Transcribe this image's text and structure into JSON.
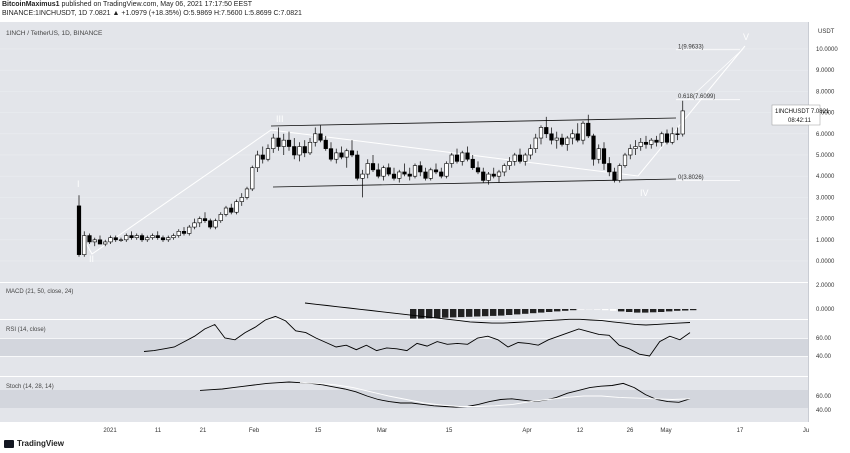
{
  "header": {
    "author": "BitcoinMaximus1",
    "publish_text": "published on TradingView.com, May 06, 2021 17:17:50 EEST",
    "symbol_line": "BINANCE:1INCHUSDT, 1D  7.0821  ▲ +1.0979 (+18.35%) O:5.9869 H:7.5600 L:5.8699 C:7.0821"
  },
  "footer": {
    "brand": "TradingView"
  },
  "price_pane": {
    "symbol_label": "1INCH / TetherUS, 1D, BINANCE",
    "usdt_label": "USDT",
    "last_price_tag": "1INCHUSDT  7.0821",
    "countdown": "08:42:11"
  },
  "macd_pane": {
    "label": "MACD (21, 50, close, 24)"
  },
  "rsi_pane": {
    "label": "RSI (14, close)"
  },
  "stoch_pane": {
    "label": "Stoch (14, 28, 14)"
  },
  "colors": {
    "bg": "#ffffff",
    "pane": "#e3e5ea",
    "candle": "#000000",
    "up_candle": "#ffffff",
    "grid": "#f2f3f5",
    "wave": "#ffffff",
    "text": "#333333"
  },
  "chart_data": {
    "type": "candlestick",
    "price_axis": {
      "ticks": [
        0,
        1,
        2,
        3,
        4,
        5,
        6,
        7,
        8,
        9,
        10
      ],
      "tick_labels": [
        "0.0000",
        "1.0000",
        "2.0000",
        "3.0000",
        "4.0000",
        "5.0000",
        "6.0000",
        "7.0000",
        "8.0000",
        "9.0000",
        "10.0000"
      ]
    },
    "x_axis": {
      "tick_labels": [
        "2021",
        "11",
        "21",
        "Feb",
        "15",
        "Mar",
        "15",
        "Apr",
        "12",
        "26",
        "May",
        "17",
        "Ju"
      ]
    },
    "candles": [
      [
        2.6,
        3.1,
        0.2,
        0.3
      ],
      [
        0.3,
        1.4,
        0.2,
        1.2
      ],
      [
        1.2,
        1.3,
        0.8,
        0.9
      ],
      [
        0.9,
        1.1,
        0.7,
        1.0
      ],
      [
        1.0,
        1.2,
        0.8,
        0.8
      ],
      [
        0.8,
        1.0,
        0.7,
        0.9
      ],
      [
        0.9,
        1.2,
        0.8,
        1.1
      ],
      [
        1.1,
        1.2,
        0.9,
        1.0
      ],
      [
        1.0,
        1.1,
        0.9,
        1.0
      ],
      [
        1.0,
        1.3,
        0.9,
        1.2
      ],
      [
        1.2,
        1.4,
        1.0,
        1.1
      ],
      [
        1.1,
        1.3,
        1.0,
        1.2
      ],
      [
        1.2,
        1.3,
        0.9,
        1.0
      ],
      [
        1.0,
        1.2,
        0.9,
        1.1
      ],
      [
        1.1,
        1.3,
        1.0,
        1.2
      ],
      [
        1.2,
        1.4,
        1.0,
        1.1
      ],
      [
        1.1,
        1.2,
        0.9,
        1.0
      ],
      [
        1.0,
        1.2,
        0.9,
        1.1
      ],
      [
        1.1,
        1.3,
        1.0,
        1.2
      ],
      [
        1.2,
        1.5,
        1.1,
        1.4
      ],
      [
        1.4,
        1.6,
        1.2,
        1.3
      ],
      [
        1.3,
        1.7,
        1.2,
        1.6
      ],
      [
        1.6,
        2.0,
        1.5,
        1.8
      ],
      [
        1.8,
        2.1,
        1.6,
        2.0
      ],
      [
        2.0,
        2.3,
        1.8,
        1.9
      ],
      [
        1.9,
        2.0,
        1.5,
        1.6
      ],
      [
        1.6,
        2.0,
        1.5,
        1.9
      ],
      [
        1.9,
        2.3,
        1.8,
        2.2
      ],
      [
        2.2,
        2.6,
        2.1,
        2.5
      ],
      [
        2.5,
        2.7,
        2.2,
        2.3
      ],
      [
        2.3,
        2.9,
        2.2,
        2.8
      ],
      [
        2.8,
        3.2,
        2.6,
        3.0
      ],
      [
        3.0,
        3.5,
        2.9,
        3.4
      ],
      [
        3.4,
        4.5,
        3.3,
        4.4
      ],
      [
        4.4,
        5.2,
        4.2,
        5.0
      ],
      [
        5.0,
        5.4,
        4.6,
        4.8
      ],
      [
        4.8,
        5.5,
        4.7,
        5.3
      ],
      [
        5.3,
        6.0,
        5.1,
        5.8
      ],
      [
        5.8,
        6.3,
        5.2,
        5.4
      ],
      [
        5.4,
        6.0,
        5.0,
        5.7
      ],
      [
        5.7,
        6.1,
        5.2,
        5.4
      ],
      [
        5.4,
        5.8,
        4.8,
        5.0
      ],
      [
        5.0,
        5.6,
        4.7,
        5.4
      ],
      [
        5.4,
        5.7,
        4.9,
        5.1
      ],
      [
        5.1,
        5.8,
        5.0,
        5.6
      ],
      [
        5.6,
        6.3,
        5.4,
        6.0
      ],
      [
        6.0,
        6.4,
        5.6,
        5.7
      ],
      [
        5.7,
        5.9,
        5.2,
        5.3
      ],
      [
        5.3,
        5.6,
        4.7,
        4.8
      ],
      [
        4.8,
        5.3,
        4.6,
        5.1
      ],
      [
        5.1,
        5.4,
        4.8,
        4.9
      ],
      [
        4.9,
        5.3,
        4.4,
        5.2
      ],
      [
        5.2,
        5.7,
        4.9,
        5.0
      ],
      [
        5.0,
        5.2,
        3.8,
        3.9
      ],
      [
        3.9,
        4.3,
        3.0,
        4.1
      ],
      [
        4.1,
        4.8,
        3.9,
        4.6
      ],
      [
        4.6,
        5.0,
        4.2,
        4.3
      ],
      [
        4.3,
        4.6,
        3.9,
        4.0
      ],
      [
        4.0,
        4.5,
        3.8,
        4.4
      ],
      [
        4.4,
        4.6,
        4.0,
        4.1
      ],
      [
        4.1,
        4.4,
        3.8,
        3.9
      ],
      [
        3.9,
        4.3,
        3.7,
        4.2
      ],
      [
        4.2,
        4.6,
        4.0,
        4.1
      ],
      [
        4.1,
        4.4,
        3.8,
        4.0
      ],
      [
        4.0,
        4.6,
        3.9,
        4.5
      ],
      [
        4.5,
        4.7,
        4.0,
        4.2
      ],
      [
        4.2,
        4.4,
        3.8,
        3.9
      ],
      [
        3.9,
        4.4,
        3.8,
        4.3
      ],
      [
        4.3,
        4.6,
        4.1,
        4.2
      ],
      [
        4.2,
        4.4,
        3.9,
        4.0
      ],
      [
        4.0,
        4.7,
        3.9,
        4.6
      ],
      [
        4.6,
        5.1,
        4.4,
        5.0
      ],
      [
        5.0,
        5.3,
        4.6,
        4.7
      ],
      [
        4.7,
        5.2,
        4.5,
        5.1
      ],
      [
        5.1,
        5.4,
        4.7,
        4.8
      ],
      [
        4.8,
        5.0,
        4.3,
        4.4
      ],
      [
        4.4,
        4.7,
        4.1,
        4.2
      ],
      [
        4.2,
        4.4,
        3.7,
        3.8
      ],
      [
        3.8,
        4.2,
        3.6,
        4.1
      ],
      [
        4.1,
        4.4,
        3.9,
        4.0
      ],
      [
        4.0,
        4.3,
        3.7,
        4.2
      ],
      [
        4.2,
        4.6,
        4.0,
        4.5
      ],
      [
        4.5,
        4.9,
        4.3,
        4.7
      ],
      [
        4.7,
        5.1,
        4.5,
        5.0
      ],
      [
        5.0,
        5.3,
        4.6,
        4.7
      ],
      [
        4.7,
        5.1,
        4.5,
        5.0
      ],
      [
        5.0,
        5.5,
        4.8,
        5.3
      ],
      [
        5.3,
        6.0,
        5.1,
        5.8
      ],
      [
        5.8,
        6.4,
        5.5,
        6.3
      ],
      [
        6.3,
        6.8,
        5.8,
        6.0
      ],
      [
        6.0,
        6.3,
        5.5,
        5.7
      ],
      [
        5.7,
        6.1,
        5.3,
        5.8
      ],
      [
        5.8,
        6.0,
        5.4,
        5.5
      ],
      [
        5.5,
        5.9,
        5.2,
        5.8
      ],
      [
        5.8,
        6.2,
        5.5,
        6.0
      ],
      [
        6.0,
        6.5,
        5.6,
        5.7
      ],
      [
        5.7,
        6.6,
        5.5,
        6.5
      ],
      [
        6.5,
        6.9,
        5.8,
        5.9
      ],
      [
        5.9,
        6.0,
        4.5,
        4.8
      ],
      [
        4.8,
        5.5,
        4.6,
        5.3
      ],
      [
        5.3,
        5.6,
        4.3,
        4.6
      ],
      [
        4.6,
        4.9,
        4.0,
        4.2
      ],
      [
        4.2,
        4.4,
        3.7,
        3.8
      ],
      [
        3.8,
        4.6,
        3.7,
        4.5
      ],
      [
        4.5,
        5.1,
        4.4,
        5.0
      ],
      [
        5.0,
        5.5,
        4.8,
        5.3
      ],
      [
        5.3,
        5.7,
        5.0,
        5.4
      ],
      [
        5.4,
        5.8,
        5.2,
        5.6
      ],
      [
        5.6,
        5.9,
        5.3,
        5.5
      ],
      [
        5.5,
        5.8,
        5.3,
        5.7
      ],
      [
        5.7,
        5.9,
        5.4,
        5.6
      ],
      [
        5.6,
        6.1,
        5.4,
        6.0
      ],
      [
        6.0,
        6.2,
        5.5,
        5.6
      ],
      [
        5.6,
        6.3,
        5.5,
        6.0
      ],
      [
        6.0,
        6.3,
        5.7,
        5.99
      ],
      [
        5.99,
        7.56,
        5.87,
        7.08
      ]
    ],
    "levels": [
      {
        "label": "1(9.9633)",
        "value": 9.9633
      },
      {
        "label": "0.618(7.6099)",
        "value": 7.6099
      },
      {
        "label": "0(3.8026)",
        "value": 3.8026
      }
    ],
    "wave_labels": [
      "I",
      "II",
      "III",
      "IV",
      "V"
    ],
    "macd_axis": {
      "ticks": [
        0,
        2
      ],
      "tick_labels": [
        "0.0000",
        "2.0000"
      ]
    },
    "rsi_axis": {
      "ticks": [
        40,
        60
      ],
      "tick_labels": [
        "40.00",
        "60.00"
      ]
    },
    "stoch_axis": {
      "ticks": [
        40,
        60
      ],
      "tick_labels": [
        "40.00",
        "60.00"
      ]
    },
    "macd_line": [
      2.1,
      2.0,
      1.9,
      1.8,
      1.7,
      1.6,
      1.5,
      1.4,
      1.3,
      1.2,
      1.1,
      1.0,
      0.9,
      0.8,
      0.7,
      0.6,
      0.55,
      0.5,
      0.5,
      0.55,
      0.6,
      0.65,
      0.7,
      0.75,
      0.8,
      0.8,
      0.75,
      0.7,
      0.6,
      0.5,
      0.4,
      0.35,
      0.4,
      0.45,
      0.5,
      0.55
    ],
    "macd_hist": [
      -1.6,
      -1.6,
      -1.55,
      -1.5,
      -1.45,
      -1.4,
      -1.35,
      -1.3,
      -1.25,
      -1.2,
      -1.15,
      -1.1,
      -1.0,
      -0.9,
      -0.8,
      -0.7,
      -0.6,
      -0.5,
      -0.4,
      -0.3,
      -0.2,
      -0.1,
      -0.05,
      -0.1,
      -0.2,
      -0.3,
      -0.4,
      -0.5,
      -0.6,
      -0.6,
      -0.55,
      -0.5,
      -0.4,
      -0.3,
      -0.25,
      -0.2
    ],
    "rsi": [
      45,
      46,
      48,
      50,
      56,
      62,
      70,
      75,
      60,
      58,
      66,
      72,
      80,
      84,
      79,
      68,
      66,
      60,
      55,
      50,
      52,
      47,
      52,
      46,
      49,
      48,
      46,
      54,
      51,
      56,
      53,
      54,
      53,
      60,
      62,
      58,
      50,
      55,
      54,
      52,
      58,
      62,
      66,
      70,
      67,
      64,
      63,
      52,
      48,
      42,
      40,
      56,
      62,
      58,
      66
    ],
    "stoch": [
      68,
      69,
      70,
      72,
      74,
      76,
      78,
      79,
      80,
      79,
      78,
      76,
      73,
      70,
      66,
      60,
      55,
      52,
      50,
      50,
      48,
      46,
      45,
      44,
      45,
      48,
      52,
      55,
      56,
      54,
      52,
      54,
      58,
      64,
      68,
      72,
      74,
      75,
      78,
      72,
      62,
      55,
      52,
      51,
      56
    ],
    "stoch_signal": [
      79,
      78,
      76,
      72,
      66,
      60,
      55,
      50,
      47,
      45,
      45,
      46,
      48,
      52,
      55,
      58,
      60,
      60,
      58,
      57,
      56,
      55,
      56
    ]
  }
}
